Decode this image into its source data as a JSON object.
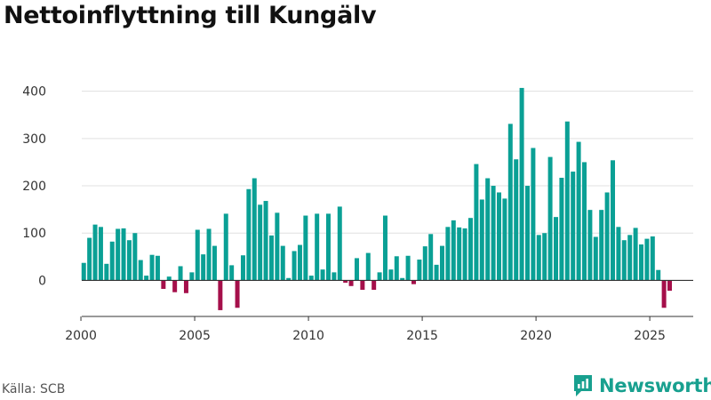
{
  "title": "Nettoinflyttning till Kungälv",
  "source": "Källa: SCB",
  "brand": {
    "name": "Newsworthy",
    "icon": "newsworthy-logo-icon"
  },
  "colors": {
    "positive": "#0aa095",
    "negative": "#a50f4a",
    "grid": "#e0e0e0",
    "axis": "#333333",
    "brand": "#18a08f"
  },
  "chart_data": {
    "type": "bar",
    "title": "Nettoinflyttning till Kungälv",
    "xlabel": "",
    "ylabel": "",
    "frequency": "quarterly",
    "start": "2000 Q1",
    "xlim": [
      1999.1,
      2027.3
    ],
    "ylim": [
      -65,
      420
    ],
    "yticks": [
      0,
      100,
      200,
      300,
      400
    ],
    "xticks": [
      2000,
      2005,
      2010,
      2015,
      2020,
      2025
    ],
    "grid": true,
    "values": [
      37,
      90,
      118,
      113,
      35,
      82,
      109,
      110,
      85,
      100,
      43,
      10,
      54,
      52,
      -18,
      8,
      -25,
      30,
      -27,
      17,
      107,
      55,
      109,
      73,
      -63,
      141,
      32,
      -58,
      53,
      193,
      216,
      160,
      168,
      95,
      143,
      73,
      5,
      62,
      75,
      137,
      10,
      141,
      23,
      141,
      17,
      156,
      -5,
      -12,
      47,
      -20,
      58,
      -20,
      17,
      137,
      23,
      51,
      5,
      52,
      -8,
      44,
      72,
      98,
      33,
      73,
      113,
      127,
      112,
      110,
      132,
      246,
      171,
      216,
      200,
      186,
      173,
      331,
      256,
      407,
      200,
      280,
      96,
      100,
      261,
      134,
      217,
      336,
      230,
      293,
      250,
      149,
      92,
      149,
      186,
      254,
      113,
      85,
      96,
      111,
      76,
      88,
      93,
      22,
      -58,
      -22
    ]
  }
}
